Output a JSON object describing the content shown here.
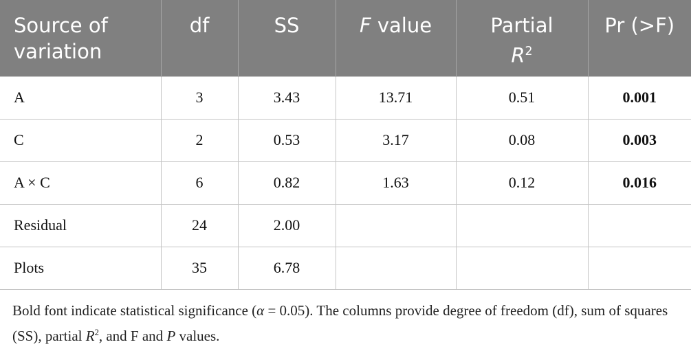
{
  "table": {
    "header": [
      [
        "Source of variation"
      ],
      [
        "df"
      ],
      [
        "SS"
      ],
      [
        "F",
        "value"
      ],
      [
        "Partial",
        "R",
        "2"
      ],
      [
        "Pr (>F)"
      ]
    ],
    "rows": [
      [
        "A",
        "3",
        "3.43",
        "13.71",
        "0.51",
        "0.001"
      ],
      [
        "C",
        "2",
        "0.53",
        "3.17",
        "0.08",
        "0.003"
      ],
      [
        "A × C",
        "6",
        "0.82",
        "1.63",
        "0.12",
        "0.016"
      ],
      [
        "Residual",
        "24",
        "2.00",
        null,
        null,
        null
      ],
      [
        "Plots",
        "35",
        "6.78",
        null,
        null,
        null
      ]
    ],
    "note": [
      "Bold font indicate statistical significance (",
      "α",
      " = 0.05). The columns provide degree of freedom (df), sum of squares (SS), partial ",
      "R",
      "2",
      ", and F and ",
      "P",
      " values."
    ]
  }
}
